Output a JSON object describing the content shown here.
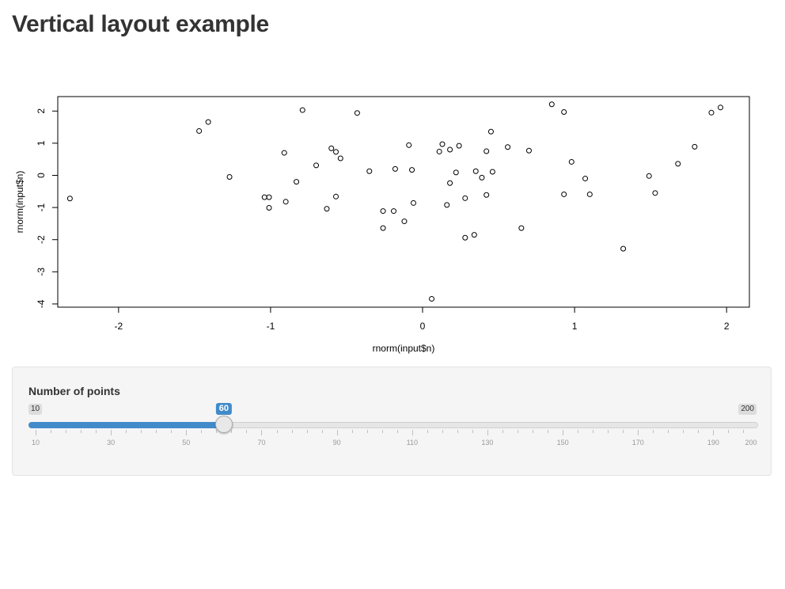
{
  "page": {
    "title": "Vertical layout example"
  },
  "control": {
    "label": "Number of points",
    "min": 10,
    "max": 200,
    "value": 60,
    "min_label": "10",
    "max_label": "200",
    "value_label": "60",
    "tick_labels": [
      "10",
      "30",
      "50",
      "70",
      "90",
      "110",
      "130",
      "150",
      "170",
      "190",
      "200"
    ],
    "accent_color": "#428bca"
  },
  "chart_data": {
    "type": "scatter",
    "xlabel": "rnorm(input$n)",
    "ylabel": "rnorm(input$n)",
    "xlim": [
      -2.4,
      2.15
    ],
    "ylim": [
      -4.1,
      2.45
    ],
    "x_ticks": [
      -2,
      -1,
      0,
      1,
      2
    ],
    "x_tick_labels": [
      "-2",
      "-1",
      "0",
      "1",
      "2"
    ],
    "y_ticks": [
      -4,
      -3,
      -2,
      -1,
      0,
      1,
      2
    ],
    "y_tick_labels": [
      "-4",
      "-3",
      "-2",
      "-1",
      "0",
      "1",
      "2"
    ],
    "points": [
      [
        -2.32,
        -0.72
      ],
      [
        -1.47,
        1.38
      ],
      [
        -1.41,
        1.66
      ],
      [
        -1.27,
        -0.05
      ],
      [
        -1.04,
        -0.68
      ],
      [
        -1.01,
        -0.68
      ],
      [
        -1.01,
        -1.01
      ],
      [
        -0.91,
        0.7
      ],
      [
        -0.9,
        -0.82
      ],
      [
        -0.83,
        -0.2
      ],
      [
        -0.79,
        2.03
      ],
      [
        -0.7,
        0.31
      ],
      [
        -0.63,
        -1.04
      ],
      [
        -0.6,
        0.84
      ],
      [
        -0.57,
        0.73
      ],
      [
        -0.57,
        -0.66
      ],
      [
        -0.54,
        0.53
      ],
      [
        -0.43,
        1.94
      ],
      [
        -0.35,
        0.13
      ],
      [
        -0.26,
        -1.11
      ],
      [
        -0.26,
        -1.64
      ],
      [
        -0.19,
        -1.11
      ],
      [
        -0.18,
        0.2
      ],
      [
        -0.12,
        -1.43
      ],
      [
        -0.09,
        0.94
      ],
      [
        -0.07,
        0.17
      ],
      [
        -0.06,
        -0.86
      ],
      [
        0.06,
        -3.84
      ],
      [
        0.11,
        0.74
      ],
      [
        0.13,
        0.97
      ],
      [
        0.16,
        -0.92
      ],
      [
        0.18,
        0.8
      ],
      [
        0.18,
        -0.24
      ],
      [
        0.22,
        0.09
      ],
      [
        0.24,
        0.92
      ],
      [
        0.28,
        -0.71
      ],
      [
        0.28,
        -1.94
      ],
      [
        0.34,
        -1.85
      ],
      [
        0.35,
        0.13
      ],
      [
        0.39,
        -0.07
      ],
      [
        0.42,
        0.75
      ],
      [
        0.42,
        -0.61
      ],
      [
        0.45,
        1.36
      ],
      [
        0.46,
        0.11
      ],
      [
        0.56,
        0.88
      ],
      [
        0.65,
        -1.64
      ],
      [
        0.7,
        0.77
      ],
      [
        0.85,
        2.21
      ],
      [
        0.93,
        1.97
      ],
      [
        0.93,
        -0.59
      ],
      [
        0.98,
        0.42
      ],
      [
        1.07,
        -0.1
      ],
      [
        1.1,
        -0.59
      ],
      [
        1.32,
        -2.28
      ],
      [
        1.49,
        -0.02
      ],
      [
        1.53,
        -0.55
      ],
      [
        1.68,
        0.36
      ],
      [
        1.79,
        0.89
      ],
      [
        1.9,
        1.95
      ],
      [
        1.96,
        2.11
      ]
    ]
  }
}
